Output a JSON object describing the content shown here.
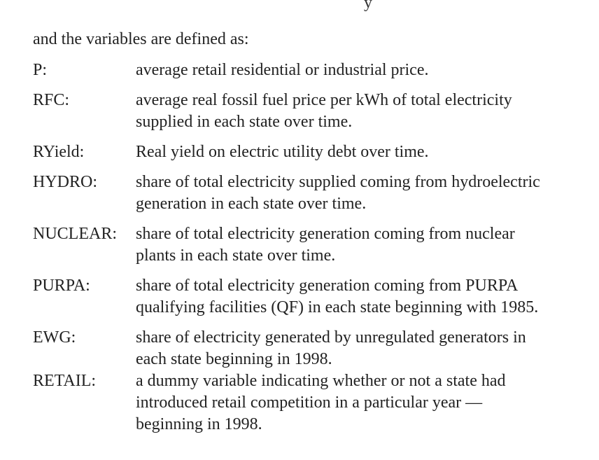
{
  "top_fragment": "y",
  "intro": "and the variables are defined as:",
  "definitions": [
    {
      "term": "P:",
      "text": "average retail residential or industrial price."
    },
    {
      "term": "RFC:",
      "text": "average real fossil fuel price per kWh of total electricity\nsupplied in each state over time."
    },
    {
      "term": "RYield:",
      "text": "Real yield on electric utility debt over time."
    },
    {
      "term": "HYDRO:",
      "text": "share of total electricity supplied coming from hydroelectric\ngeneration in each state over time."
    },
    {
      "term": "NUCLEAR:",
      "text": "share of total electricity generation coming from nuclear\nplants  in each state over time."
    },
    {
      "term": "PURPA:",
      "text": "share of total electricity generation coming from PURPA\nqualifying facilities (QF) in each state beginning with 1985."
    },
    {
      "term": "EWG:",
      "text": "share of electricity generated by unregulated generators in\neach state beginning in 1998."
    },
    {
      "term": "RETAIL:",
      "text": "a dummy variable indicating whether or not a state had\nintroduced retail competition in a particular year —\nbeginning  in 1998."
    }
  ]
}
